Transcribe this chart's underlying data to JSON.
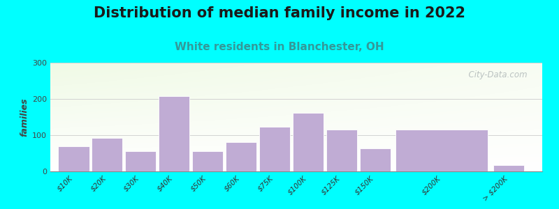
{
  "title": "Distribution of median family income in 2022",
  "subtitle": "White residents in Blanchester, OH",
  "ylabel": "families",
  "categories": [
    "$10K",
    "$20K",
    "$30K",
    "$40K",
    "$50K",
    "$60K",
    "$75K",
    "$100K",
    "$125K",
    "$150K",
    "$200K",
    "> $200K"
  ],
  "values": [
    70,
    93,
    55,
    207,
    55,
    80,
    123,
    161,
    115,
    63,
    115,
    18
  ],
  "bar_lefts": [
    0,
    1,
    2,
    3,
    4,
    5,
    6,
    7,
    8,
    9,
    10,
    13
  ],
  "bar_widths": [
    1,
    1,
    1,
    1,
    1,
    1,
    1,
    1,
    1,
    1,
    3,
    1
  ],
  "bar_color": "#c0acd4",
  "bar_edge_color": "#ffffff",
  "background_outer": "#00FFFF",
  "ylim": [
    0,
    300
  ],
  "yticks": [
    0,
    100,
    200,
    300
  ],
  "title_fontsize": 15,
  "subtitle_fontsize": 11,
  "subtitle_color": "#339999",
  "watermark_text": "  City-Data.com",
  "watermark_color": "#b0b8b8"
}
